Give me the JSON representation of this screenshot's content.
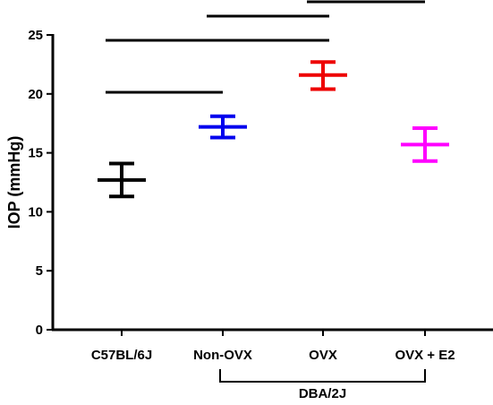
{
  "chart_data": {
    "type": "scatter",
    "title": "",
    "ylabel": "IOP (mmHg)",
    "xlabel": "",
    "ylim": [
      0,
      25
    ],
    "yticks": [
      0,
      5,
      10,
      15,
      20,
      25
    ],
    "categories": [
      "C57BL/6J",
      "Non-OVX",
      "OVX",
      "OVX + E2"
    ],
    "group_label": "DBA/2J",
    "group_members": [
      "Non-OVX",
      "OVX",
      "OVX + E2"
    ],
    "series": [
      {
        "category": "C57BL/6J",
        "mean": 12.7,
        "lower": 11.3,
        "upper": 14.1,
        "color": "#000000"
      },
      {
        "category": "Non-OVX",
        "mean": 17.2,
        "lower": 16.3,
        "upper": 18.1,
        "color": "#0000ee"
      },
      {
        "category": "OVX",
        "mean": 21.6,
        "lower": 20.4,
        "upper": 22.7,
        "color": "#ee0000"
      },
      {
        "category": "OVX + E2",
        "mean": 15.7,
        "lower": 14.3,
        "upper": 17.1,
        "color": "#ff00ff"
      }
    ],
    "significance_bars": [
      {
        "from": "C57BL/6J",
        "to": "Non-OVX"
      },
      {
        "from": "C57BL/6J",
        "to": "OVX"
      },
      {
        "from": "Non-OVX",
        "to": "OVX"
      },
      {
        "from": "OVX",
        "to": "OVX + E2"
      }
    ]
  }
}
